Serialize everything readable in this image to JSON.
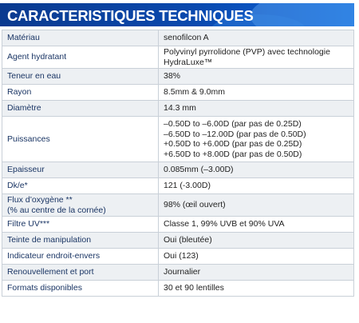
{
  "title": "CARACTERISTIQUES TECHNIQUES",
  "colors": {
    "header": "#0a49ae",
    "label_text": "#1a3564",
    "row_shade": "#edf0f3"
  },
  "rows": [
    {
      "label": [
        "Matériau"
      ],
      "value": [
        "senofilcon A"
      ]
    },
    {
      "label": [
        "Agent hydratant"
      ],
      "value": [
        "Polyvinyl pyrrolidone (PVP) avec technologie",
        "HydraLuxe™"
      ]
    },
    {
      "label": [
        "Teneur en eau"
      ],
      "value": [
        "38%"
      ]
    },
    {
      "label": [
        "Rayon"
      ],
      "value": [
        "8.5mm & 9.0mm"
      ]
    },
    {
      "label": [
        "Diamètre"
      ],
      "value": [
        "14.3 mm"
      ]
    },
    {
      "label": [
        "Puissances"
      ],
      "value": [
        "–0.50D to –6.00D (par pas de 0.25D)",
        "–6.50D to –12.00D (par pas de 0.50D)",
        "+0.50D to +6.00D (par pas de 0.25D)",
        "+6.50D to +8.00D (par pas de 0.50D)"
      ]
    },
    {
      "label": [
        "Epaisseur"
      ],
      "value": [
        "0.085mm (–3.00D)"
      ]
    },
    {
      "label": [
        "Dk/e*"
      ],
      "value": [
        "121 (-3.00D)"
      ]
    },
    {
      "label": [
        "Flux d’oxygène **",
        "(% au centre de la cornée)"
      ],
      "value": [
        "98% (œil ouvert)"
      ]
    },
    {
      "label": [
        "Filtre UV***"
      ],
      "value": [
        "Classe 1, 99% UVB et 90% UVA"
      ]
    },
    {
      "label": [
        "Teinte de manipulation"
      ],
      "value": [
        "Oui (bleutée)"
      ]
    },
    {
      "label": [
        "Indicateur endroit-envers"
      ],
      "value": [
        "Oui (123)"
      ]
    },
    {
      "label": [
        "Renouvellement et port"
      ],
      "value": [
        "Journalier"
      ]
    },
    {
      "label": [
        "Formats disponibles"
      ],
      "value": [
        "30 et 90 lentilles"
      ]
    }
  ]
}
